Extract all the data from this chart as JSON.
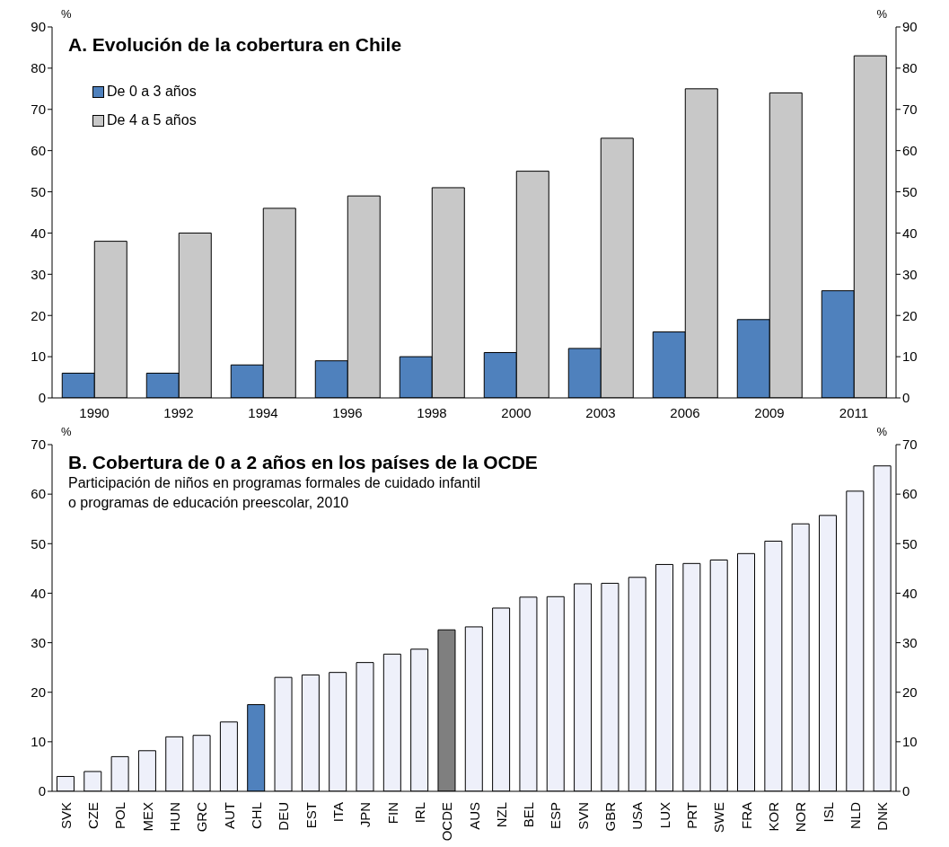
{
  "chart_data": [
    {
      "type": "bar",
      "title": "A. Evolución de la cobertura en Chile",
      "ylabel": "%",
      "y2label": "%",
      "categories": [
        "1990",
        "1992",
        "1994",
        "1996",
        "1998",
        "2000",
        "2003",
        "2006",
        "2009",
        "2011"
      ],
      "series": [
        {
          "name": "De 0 a 3 años",
          "color": "#4f81bd",
          "values": [
            6,
            6,
            8,
            9,
            10,
            11,
            12,
            16,
            19,
            26
          ]
        },
        {
          "name": "De 4 a 5 años",
          "color": "#c8c8c8",
          "values": [
            38,
            40,
            46,
            49,
            51,
            55,
            63,
            75,
            74,
            83
          ]
        }
      ],
      "ylim": [
        0,
        90
      ],
      "yticks": [
        0,
        10,
        20,
        30,
        40,
        50,
        60,
        70,
        80,
        90
      ],
      "y2lim": [
        0,
        90
      ],
      "y2ticks": [
        0,
        10,
        20,
        30,
        40,
        50,
        60,
        70,
        80,
        90
      ],
      "legend": "top left"
    },
    {
      "type": "bar",
      "title": "B. Cobertura de 0 a 2 años en los países de la OCDE",
      "subtitle": "Participación de niños en programas formales de cuidado infantil\no programas de educación preescolar, 2010",
      "ylabel": "%",
      "y2label": "%",
      "categories": [
        "SVK",
        "CZE",
        "POL",
        "MEX",
        "HUN",
        "GRC",
        "AUT",
        "CHL",
        "DEU",
        "EST",
        "ITA",
        "JPN",
        "FIN",
        "IRL",
        "OCDE",
        "AUS",
        "NZL",
        "BEL",
        "ESP",
        "SVN",
        "GBR",
        "USA",
        "LUX",
        "PRT",
        "SWE",
        "FRA",
        "KOR",
        "NOR",
        "ISL",
        "NLD",
        "DNK"
      ],
      "values": [
        3,
        4,
        7,
        8.2,
        11,
        11.3,
        14,
        17.5,
        23,
        23.5,
        24,
        26,
        27.7,
        28.7,
        32.6,
        33.2,
        37,
        39.2,
        39.3,
        41.9,
        42,
        43.2,
        45.8,
        46,
        46.7,
        48,
        50.5,
        54,
        55.7,
        60.6,
        65.7
      ],
      "colors": [
        "#eef0fa",
        "#eef0fa",
        "#eef0fa",
        "#eef0fa",
        "#eef0fa",
        "#eef0fa",
        "#eef0fa",
        "#4f81bd",
        "#eef0fa",
        "#eef0fa",
        "#eef0fa",
        "#eef0fa",
        "#eef0fa",
        "#eef0fa",
        "#7f7f7f",
        "#eef0fa",
        "#eef0fa",
        "#eef0fa",
        "#eef0fa",
        "#eef0fa",
        "#eef0fa",
        "#eef0fa",
        "#eef0fa",
        "#eef0fa",
        "#eef0fa",
        "#eef0fa",
        "#eef0fa",
        "#eef0fa",
        "#eef0fa",
        "#eef0fa",
        "#eef0fa"
      ],
      "ylim": [
        0,
        70
      ],
      "yticks": [
        0,
        10,
        20,
        30,
        40,
        50,
        60,
        70
      ],
      "y2lim": [
        0,
        70
      ],
      "y2ticks": [
        0,
        10,
        20,
        30,
        40,
        50,
        60,
        70
      ],
      "legend": false
    }
  ]
}
